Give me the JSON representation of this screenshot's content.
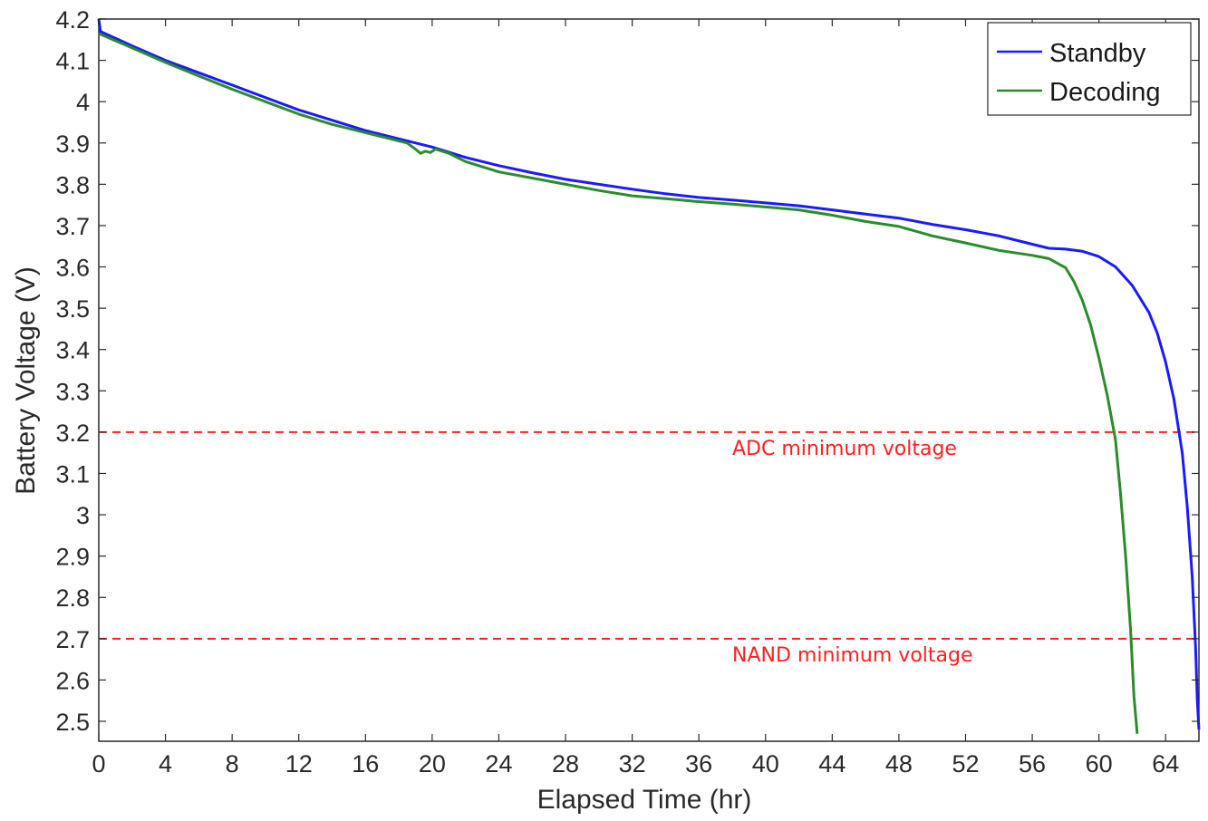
{
  "chart_data": {
    "type": "line",
    "xlabel": "Elapsed Time (hr)",
    "ylabel": "Battery Voltage (V)",
    "xlim": [
      0,
      66
    ],
    "ylim": [
      2.45,
      4.2
    ],
    "x_ticks": [
      0,
      4,
      8,
      12,
      16,
      20,
      24,
      28,
      32,
      36,
      40,
      44,
      48,
      52,
      56,
      60,
      64
    ],
    "x_tick_labels": [
      "0",
      "4",
      "8",
      "12",
      "16",
      "20",
      "24",
      "28",
      "32",
      "36",
      "40",
      "44",
      "48",
      "52",
      "56",
      "60",
      "64"
    ],
    "y_ticks": [
      2.5,
      2.6,
      2.7,
      2.8,
      2.9,
      3.0,
      3.1,
      3.2,
      3.3,
      3.4,
      3.5,
      3.6,
      3.7,
      3.8,
      3.9,
      4.0,
      4.1,
      4.2
    ],
    "y_tick_labels": [
      "2.5",
      "2.6",
      "2.7",
      "2.8",
      "2.9",
      "3",
      "3.1",
      "3.2",
      "3.3",
      "3.4",
      "3.5",
      "3.6",
      "3.7",
      "3.8",
      "3.9",
      "4",
      "4.1",
      "4.2"
    ],
    "grid": false,
    "legend_position": "top-right",
    "series": [
      {
        "name": "Standby",
        "color": "#1a1aff",
        "x": [
          0,
          0.1,
          2,
          4,
          6,
          8,
          10,
          12,
          14,
          16,
          18,
          20,
          22,
          24,
          26,
          28,
          30,
          32,
          34,
          36,
          38,
          40,
          42,
          44,
          46,
          48,
          50,
          52,
          54,
          56,
          57,
          58,
          59,
          60,
          61,
          62,
          63,
          63.5,
          64,
          64.5,
          65,
          65.3,
          65.6,
          65.8,
          65.9,
          66
        ],
        "y": [
          4.2,
          4.17,
          4.135,
          4.1,
          4.07,
          4.04,
          4.01,
          3.98,
          3.955,
          3.93,
          3.91,
          3.89,
          3.865,
          3.845,
          3.828,
          3.812,
          3.8,
          3.788,
          3.777,
          3.768,
          3.762,
          3.755,
          3.748,
          3.738,
          3.728,
          3.718,
          3.703,
          3.69,
          3.675,
          3.655,
          3.645,
          3.643,
          3.638,
          3.625,
          3.6,
          3.555,
          3.49,
          3.44,
          3.37,
          3.28,
          3.15,
          3.02,
          2.85,
          2.68,
          2.55,
          2.48
        ]
      },
      {
        "name": "Decoding",
        "color": "#2a8c2a",
        "x": [
          0,
          2,
          4,
          6,
          8,
          10,
          12,
          14,
          16,
          17,
          18,
          18.5,
          19,
          19.3,
          19.6,
          19.9,
          20.2,
          21,
          22,
          24,
          26,
          28,
          30,
          32,
          34,
          36,
          38,
          40,
          42,
          44,
          46,
          48,
          50,
          52,
          54,
          56,
          57,
          58,
          58.5,
          59,
          59.5,
          60,
          60.5,
          61,
          61.3,
          61.6,
          61.9,
          62.1,
          62.3
        ],
        "y": [
          4.165,
          4.13,
          4.095,
          4.062,
          4.03,
          4.0,
          3.97,
          3.945,
          3.925,
          3.915,
          3.905,
          3.9,
          3.885,
          3.875,
          3.88,
          3.877,
          3.885,
          3.875,
          3.855,
          3.83,
          3.815,
          3.8,
          3.785,
          3.772,
          3.765,
          3.758,
          3.752,
          3.745,
          3.738,
          3.725,
          3.71,
          3.698,
          3.675,
          3.658,
          3.64,
          3.628,
          3.62,
          3.598,
          3.565,
          3.52,
          3.46,
          3.38,
          3.29,
          3.18,
          3.05,
          2.9,
          2.72,
          2.56,
          2.47
        ]
      }
    ],
    "reference_lines": [
      {
        "y": 3.2,
        "label": "ADC minimum voltage",
        "color": "#ff2020"
      },
      {
        "y": 2.7,
        "label": "NAND minimum voltage",
        "color": "#ff2020"
      }
    ]
  }
}
